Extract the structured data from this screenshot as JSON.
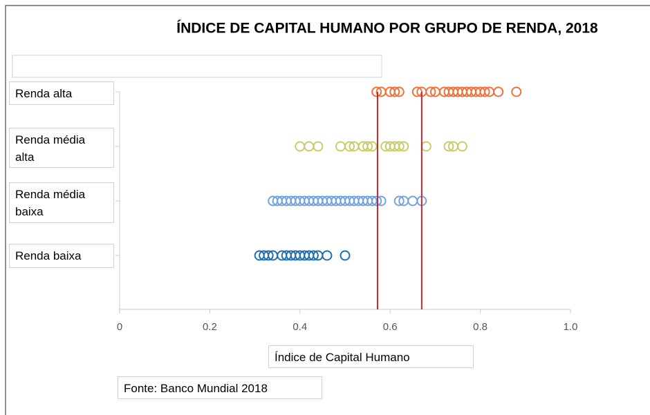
{
  "chart_data": {
    "type": "strip",
    "title": "ÍNDICE DE CAPITAL HUMANO POR GRUPO DE RENDA, 2018",
    "x_label": "Índice de Capital Humano",
    "source": "Fonte: Banco Mundial 2018",
    "categories": [
      "Renda alta",
      "Renda média alta",
      "Renda média baixa",
      "Renda baixa"
    ],
    "series": [
      {
        "color": "#f07038",
        "values": [
          0.57,
          0.58,
          0.6,
          0.61,
          0.62,
          0.66,
          0.67,
          0.69,
          0.7,
          0.72,
          0.73,
          0.74,
          0.75,
          0.76,
          0.77,
          0.78,
          0.79,
          0.8,
          0.81,
          0.82,
          0.84,
          0.88
        ]
      },
      {
        "color": "#c9cc66",
        "values": [
          0.4,
          0.42,
          0.44,
          0.49,
          0.51,
          0.52,
          0.54,
          0.55,
          0.56,
          0.59,
          0.6,
          0.61,
          0.62,
          0.63,
          0.68,
          0.73,
          0.74,
          0.76
        ]
      },
      {
        "color": "#72a3de",
        "values": [
          0.34,
          0.35,
          0.36,
          0.37,
          0.38,
          0.39,
          0.4,
          0.41,
          0.42,
          0.43,
          0.44,
          0.45,
          0.46,
          0.47,
          0.48,
          0.49,
          0.5,
          0.51,
          0.52,
          0.53,
          0.54,
          0.55,
          0.56,
          0.57,
          0.58,
          0.62,
          0.63,
          0.65,
          0.67
        ]
      },
      {
        "color": "#1f6db0",
        "values": [
          0.31,
          0.32,
          0.33,
          0.34,
          0.36,
          0.37,
          0.38,
          0.39,
          0.4,
          0.41,
          0.42,
          0.43,
          0.44,
          0.46,
          0.5
        ]
      }
    ],
    "reference_lines": [
      0.572,
      0.67
    ],
    "reference_color": "#c0282e",
    "xlim": [
      0,
      1
    ],
    "xticks": [
      0,
      0.2,
      0.4,
      0.6,
      0.8,
      {
        "value": 1,
        "label": "1.0"
      }
    ]
  }
}
